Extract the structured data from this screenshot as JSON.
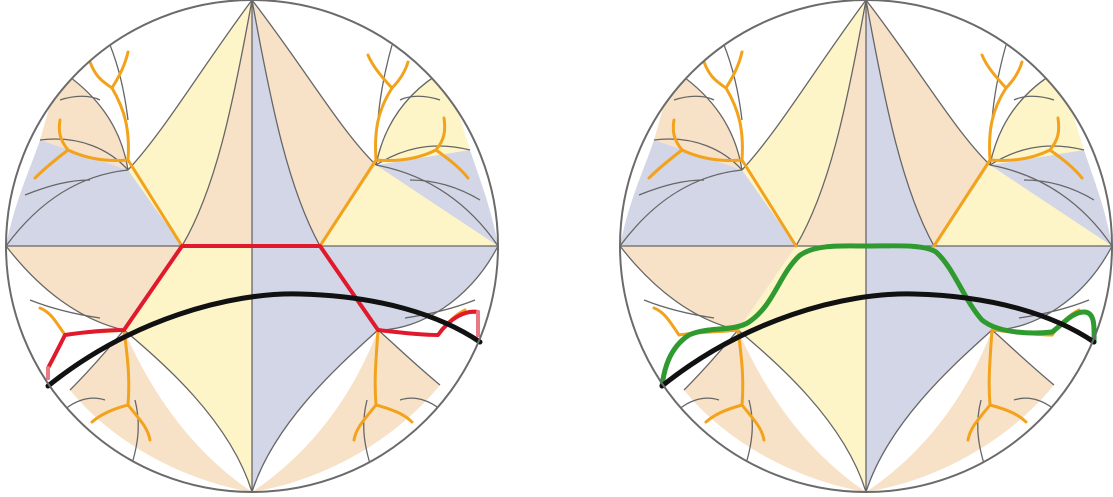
{
  "figure": {
    "panels": [
      {
        "name": "left-disk",
        "path_style": "piecewise-geodesic"
      },
      {
        "name": "right-disk",
        "path_style": "smoothed"
      }
    ],
    "colors": {
      "disk_outline": "#6b6b6b",
      "cell_lines": "#666666",
      "peach_region": "#f7e2c8",
      "yellow_region": "#fdf5c8",
      "lavender_region": "#d3d6e6",
      "tree_edges": "#f2a21b",
      "red_path": "#e0192d",
      "green_path": "#2e9a2f",
      "black_geodesic": "#111111"
    }
  }
}
